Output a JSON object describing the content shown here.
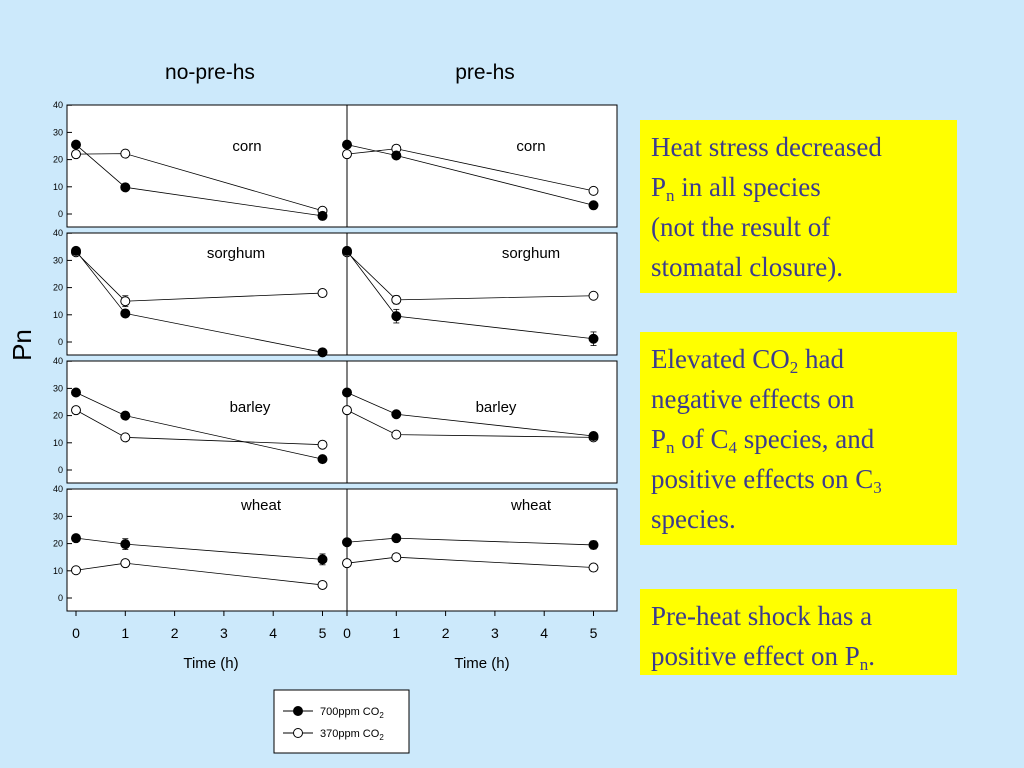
{
  "chart_data": {
    "type": "line",
    "column_titles": [
      "no-pre-hs",
      "pre-hs"
    ],
    "ylabel": "Pn",
    "xlabel": "Time (h)",
    "x_ticks": [
      0,
      1,
      2,
      3,
      4,
      5
    ],
    "y_ticks": [
      0,
      10,
      20,
      30,
      40
    ],
    "ylim": [
      -5,
      40
    ],
    "xlim": [
      0,
      5.5
    ],
    "grid": false,
    "legend": {
      "placement": "bottom-center",
      "entries": [
        {
          "label_main": "700ppm CO",
          "label_sub": "2",
          "marker": "filled"
        },
        {
          "label_main": "370ppm CO",
          "label_sub": "2",
          "marker": "open"
        }
      ]
    },
    "panels": [
      {
        "species": "corn",
        "column": "no-pre-hs",
        "x": [
          0,
          1,
          5
        ],
        "series": [
          {
            "co2": "700ppm",
            "values": [
              25.5,
              9.8,
              -0.7
            ],
            "errors": [
              0,
              0,
              0
            ]
          },
          {
            "co2": "370ppm",
            "values": [
              22,
              22.2,
              1.2
            ],
            "errors": [
              0,
              0,
              0
            ]
          }
        ]
      },
      {
        "species": "corn",
        "column": "pre-hs",
        "x": [
          0,
          1,
          5
        ],
        "series": [
          {
            "co2": "700ppm",
            "values": [
              25.5,
              21.5,
              3.2
            ],
            "errors": [
              0,
              0,
              0
            ]
          },
          {
            "co2": "370ppm",
            "values": [
              22,
              24,
              8.5
            ],
            "errors": [
              0,
              0,
              0
            ]
          }
        ]
      },
      {
        "species": "sorghum",
        "column": "no-pre-hs",
        "x": [
          0,
          1,
          5
        ],
        "series": [
          {
            "co2": "700ppm",
            "values": [
              33.5,
              10.5,
              -3.8
            ],
            "errors": [
              0,
              0,
              0
            ]
          },
          {
            "co2": "370ppm",
            "values": [
              33,
              15,
              18
            ],
            "errors": [
              0,
              2,
              0
            ]
          }
        ]
      },
      {
        "species": "sorghum",
        "column": "pre-hs",
        "x": [
          0,
          1,
          5
        ],
        "series": [
          {
            "co2": "700ppm",
            "values": [
              33.5,
              9.5,
              1.2
            ],
            "errors": [
              0,
              2.5,
              2.5
            ]
          },
          {
            "co2": "370ppm",
            "values": [
              33,
              15.5,
              17
            ],
            "errors": [
              0,
              1.5,
              0
            ]
          }
        ]
      },
      {
        "species": "barley",
        "column": "no-pre-hs",
        "x": [
          0,
          1,
          5
        ],
        "series": [
          {
            "co2": "700ppm",
            "values": [
              28.5,
              20,
              4
            ],
            "errors": [
              0,
              0,
              0
            ]
          },
          {
            "co2": "370ppm",
            "values": [
              22,
              12,
              9.3
            ],
            "errors": [
              0,
              0,
              0
            ]
          }
        ]
      },
      {
        "species": "barley",
        "column": "pre-hs",
        "x": [
          0,
          1,
          5
        ],
        "series": [
          {
            "co2": "700ppm",
            "values": [
              28.5,
              20.5,
              12.5
            ],
            "errors": [
              0,
              0,
              0
            ]
          },
          {
            "co2": "370ppm",
            "values": [
              22,
              13,
              12
            ],
            "errors": [
              0,
              0,
              0
            ]
          }
        ]
      },
      {
        "species": "wheat",
        "column": "no-pre-hs",
        "x": [
          0,
          1,
          5
        ],
        "series": [
          {
            "co2": "700ppm",
            "values": [
              22,
              19.8,
              14.2
            ],
            "errors": [
              0,
              2,
              2
            ]
          },
          {
            "co2": "370ppm",
            "values": [
              10.2,
              12.8,
              4.8
            ],
            "errors": [
              0,
              0,
              0
            ]
          }
        ]
      },
      {
        "species": "wheat",
        "column": "pre-hs",
        "x": [
          0,
          1,
          5
        ],
        "series": [
          {
            "co2": "700ppm",
            "values": [
              20.5,
              22,
              19.5
            ],
            "errors": [
              0,
              0,
              1.5
            ]
          },
          {
            "co2": "370ppm",
            "values": [
              12.8,
              15,
              11.2
            ],
            "errors": [
              0,
              0,
              0
            ]
          }
        ]
      }
    ]
  },
  "notes": {
    "note1": {
      "line1": "Heat stress decreased",
      "line2_pre": "P",
      "line2_sub": "n",
      "line2_post": " in all species",
      "line3": "(not the result of",
      "line4": "stomatal closure)."
    },
    "note2": {
      "line1_pre": "Elevated CO",
      "line1_sub": "2",
      "line1_post": " had",
      "line2": "negative effects on",
      "line3_pre": "P",
      "line3_sub": "n",
      "line3_mid": " of C",
      "line3_sub2": "4",
      "line3_post": " species, and",
      "line4_pre": "positive effects on C",
      "line4_sub": "3",
      "line5": "species."
    },
    "note3": {
      "line1": "Pre-heat shock has a",
      "line2_pre": "positive effect on P",
      "line2_sub": "n",
      "line2_post": "."
    }
  }
}
